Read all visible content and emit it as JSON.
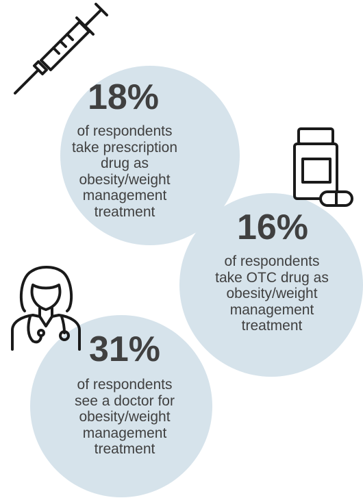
{
  "stats": [
    {
      "value": "18%",
      "description": "of respondents\ntake prescription\ndrug as\nobesity/weight\nmanagement\ntreatment",
      "icon": "syringe-icon"
    },
    {
      "value": "16%",
      "description": "of respondents\ntake OTC drug as\nobesity/weight\nmanagement\ntreatment",
      "icon": "pill-bottle-icon"
    },
    {
      "value": "31%",
      "description": "of respondents\nsee a doctor for\nobesity/weight\nmanagement\ntreatment",
      "icon": "doctor-icon"
    }
  ],
  "colors": {
    "circle": "#d6e3eb",
    "text": "#404040",
    "icon": "#1a1a1a"
  }
}
